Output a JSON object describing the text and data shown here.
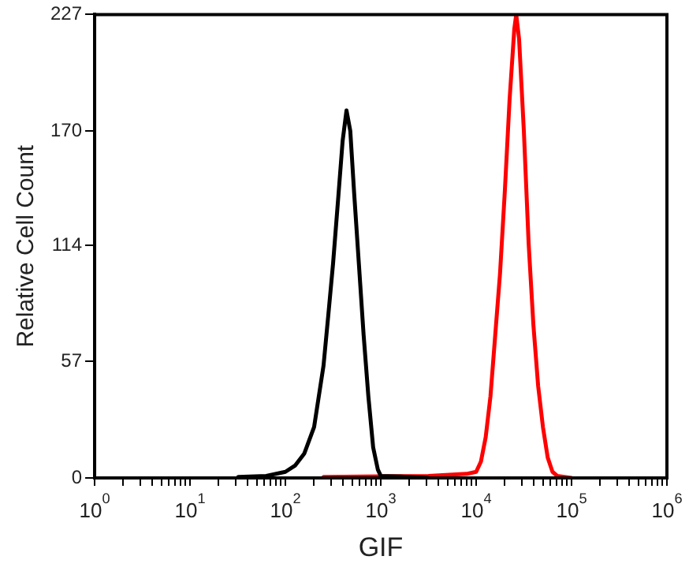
{
  "chart_data": {
    "type": "line",
    "xlabel": "GIF",
    "ylabel": "Relative Cell Count",
    "log": "x",
    "xlim": [
      1,
      1000000
    ],
    "ylim": [
      0,
      227
    ],
    "xticks": [
      {
        "value": 1,
        "label": "10$^{0}$"
      },
      {
        "value": 2,
        "label": null
      },
      {
        "value": 3,
        "label": null
      },
      {
        "value": 4,
        "label": null
      },
      {
        "value": 5,
        "label": null
      },
      {
        "value": 6,
        "label": null
      },
      {
        "value": 7,
        "label": null
      },
      {
        "value": 8,
        "label": null
      },
      {
        "value": 9,
        "label": null
      },
      {
        "value": 10,
        "label": "10$^{1}$"
      },
      {
        "value": 20,
        "label": null
      },
      {
        "value": 30,
        "label": null
      },
      {
        "value": 40,
        "label": null
      },
      {
        "value": 50,
        "label": null
      },
      {
        "value": 60,
        "label": null
      },
      {
        "value": 70,
        "label": null
      },
      {
        "value": 80,
        "label": null
      },
      {
        "value": 90,
        "label": null
      },
      {
        "value": 100,
        "label": "10$^{2}$"
      },
      {
        "value": 200,
        "label": null
      },
      {
        "value": 300,
        "label": null
      },
      {
        "value": 400,
        "label": null
      },
      {
        "value": 500,
        "label": null
      },
      {
        "value": 600,
        "label": null
      },
      {
        "value": 700,
        "label": null
      },
      {
        "value": 800,
        "label": null
      },
      {
        "value": 900,
        "label": null
      },
      {
        "value": 1000,
        "label": "10$^{3}$"
      },
      {
        "value": 2000,
        "label": null
      },
      {
        "value": 3000,
        "label": null
      },
      {
        "value": 4000,
        "label": null
      },
      {
        "value": 5000,
        "label": null
      },
      {
        "value": 6000,
        "label": null
      },
      {
        "value": 7000,
        "label": null
      },
      {
        "value": 8000,
        "label": null
      },
      {
        "value": 9000,
        "label": null
      },
      {
        "value": 10000,
        "label": "10$^{4}$"
      },
      {
        "value": 20000,
        "label": null
      },
      {
        "value": 30000,
        "label": null
      },
      {
        "value": 40000,
        "label": null
      },
      {
        "value": 50000,
        "label": null
      },
      {
        "value": 60000,
        "label": null
      },
      {
        "value": 70000,
        "label": null
      },
      {
        "value": 80000,
        "label": null
      },
      {
        "value": 90000,
        "label": null
      },
      {
        "value": 100000,
        "label": "10$^{5}$"
      },
      {
        "value": 200000,
        "label": null
      },
      {
        "value": 300000,
        "label": null
      },
      {
        "value": 400000,
        "label": null
      },
      {
        "value": 500000,
        "label": null
      },
      {
        "value": 600000,
        "label": null
      },
      {
        "value": 700000,
        "label": null
      },
      {
        "value": 800000,
        "label": null
      },
      {
        "value": 900000,
        "label": null
      },
      {
        "value": 1000000,
        "label": "10$^{6}$"
      }
    ],
    "yticks": [
      0,
      57,
      114,
      170,
      227
    ],
    "grid": false,
    "legend": false,
    "marker": "none",
    "line_style": "solid",
    "series": [
      {
        "color": "#000000",
        "x": [
          32,
          63,
          100,
          126,
          158,
          200,
          251,
          282,
          316,
          355,
          398,
          437,
          479,
          525,
          589,
          661,
          741,
          832,
          933,
          1000,
          1995,
          3162
        ],
        "values": [
          0.5,
          1,
          3,
          6,
          12,
          25,
          55,
          80,
          105,
          135,
          165,
          180,
          170,
          140,
          105,
          70,
          40,
          15,
          4,
          1,
          0.5,
          0
        ]
      },
      {
        "color": "#ff0000",
        "x": [
          251,
          3162,
          7943,
          10000,
          11220,
          12589,
          14125,
          15849,
          17783,
          19953,
          22387,
          25119,
          26303,
          28184,
          31623,
          35481,
          39811,
          44668,
          50119,
          56234,
          63096,
          70795,
          100000
        ],
        "values": [
          0.5,
          1,
          2,
          3,
          8,
          20,
          40,
          70,
          100,
          140,
          185,
          220,
          227,
          215,
          170,
          115,
          75,
          45,
          25,
          10,
          3,
          1,
          0
        ]
      }
    ]
  }
}
